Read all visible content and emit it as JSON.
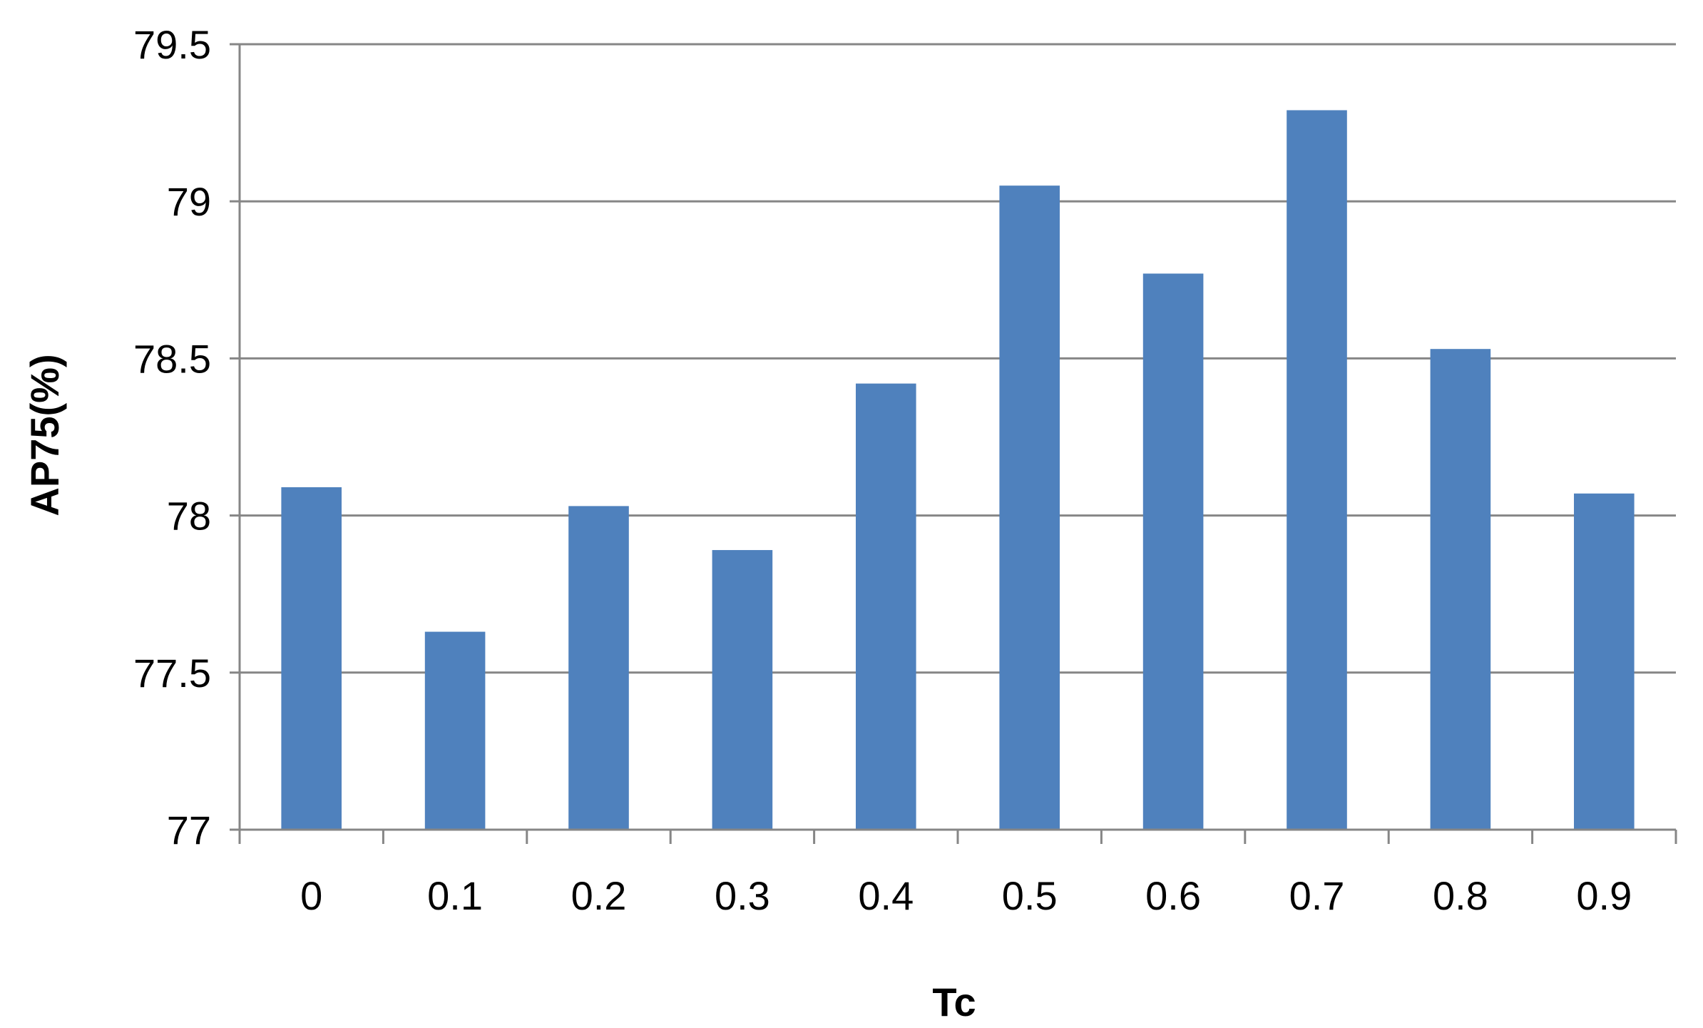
{
  "chart_data": {
    "type": "bar",
    "title": "",
    "xlabel": "Tc",
    "ylabel": "AP75(%)",
    "categories": [
      "0",
      "0.1",
      "0.2",
      "0.3",
      "0.4",
      "0.5",
      "0.6",
      "0.7",
      "0.8",
      "0.9"
    ],
    "values": [
      78.09,
      77.63,
      78.03,
      77.89,
      78.42,
      79.05,
      78.77,
      79.29,
      78.53,
      78.07
    ],
    "ylim": [
      77,
      79.5
    ],
    "yticks": [
      "77",
      "77.5",
      "78",
      "78.5",
      "79",
      "79.5"
    ],
    "grid": true,
    "legend": "none",
    "colors": {
      "bar": "#4F81BD",
      "grid": "#868686",
      "axis": "#868686"
    }
  }
}
